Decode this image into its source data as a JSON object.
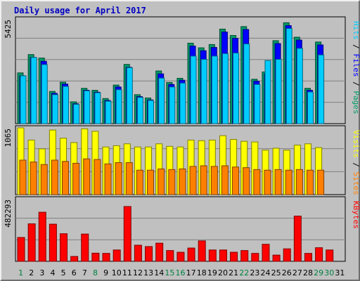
{
  "title": "Daily usage for April 2017",
  "colors": {
    "background": "#c0c0c0",
    "hits": "#00ccff",
    "files": "#0000ff",
    "pages": "#009966",
    "visits": "#ffff00",
    "sites": "#ff8000",
    "kbytes": "#ff0000",
    "title": "#0000c0",
    "weekend_label": "#008040"
  },
  "chart_data": [
    {
      "type": "bar",
      "panel": "top",
      "ymax_label": "5425",
      "ylim": [
        0,
        5425
      ],
      "side_label": [
        {
          "text": "Pages",
          "color_key": "pages"
        },
        {
          "text": "Files",
          "color_key": "files"
        },
        {
          "text": "Hits",
          "color_key": "hits"
        }
      ],
      "separator": " / ",
      "series": [
        {
          "name": "Pages",
          "color_key": "pages",
          "values": [
            2630,
            3580,
            3400,
            1670,
            2150,
            1130,
            1830,
            1730,
            1300,
            2000,
            3070,
            1500,
            1330,
            2730,
            2130,
            2350,
            4170,
            3930,
            4100,
            4900,
            4570,
            5030,
            2300,
            2680,
            4300,
            5230,
            4480,
            1830,
            4230,
            "",
            ""
          ]
        },
        {
          "name": "Files",
          "color_key": "files",
          "values": [
            2480,
            3430,
            3230,
            1570,
            2050,
            1030,
            1730,
            1630,
            1200,
            1900,
            2920,
            1400,
            1230,
            2580,
            2030,
            2250,
            4020,
            3780,
            3950,
            4750,
            4420,
            4880,
            2200,
            2580,
            4150,
            5080,
            4330,
            1730,
            4080,
            "",
            ""
          ]
        },
        {
          "name": "Hits",
          "color_key": "hits",
          "values": [
            2480,
            3430,
            3060,
            1500,
            1930,
            1000,
            1700,
            1600,
            1160,
            1760,
            2900,
            1360,
            1200,
            2360,
            1900,
            2100,
            3500,
            3330,
            3500,
            3630,
            3660,
            4130,
            2030,
            3270,
            3330,
            4930,
            3900,
            1640,
            3560,
            "",
            ""
          ]
        }
      ]
    },
    {
      "type": "bar",
      "panel": "middle",
      "ymax_label": "1065",
      "ylim": [
        0,
        1065
      ],
      "side_label": [
        {
          "text": "Sites",
          "color_key": "sites"
        },
        {
          "text": "Visits",
          "color_key": "visits"
        }
      ],
      "separator": " / ",
      "series": [
        {
          "name": "Visits",
          "color_key": "visits",
          "values": [
            1065,
            870,
            730,
            1030,
            900,
            830,
            1050,
            1010,
            760,
            780,
            810,
            760,
            760,
            810,
            770,
            760,
            870,
            860,
            870,
            940,
            880,
            850,
            840,
            710,
            740,
            710,
            790,
            810,
            750,
            "",
            ""
          ]
        },
        {
          "name": "Sites",
          "color_key": "sites",
          "values": [
            550,
            520,
            480,
            550,
            530,
            500,
            570,
            560,
            490,
            510,
            510,
            390,
            390,
            410,
            400,
            410,
            450,
            460,
            450,
            460,
            440,
            430,
            400,
            390,
            400,
            390,
            400,
            390,
            390,
            "",
            ""
          ]
        }
      ]
    },
    {
      "type": "bar",
      "panel": "bottom",
      "ymax_label": "482293",
      "ylim": [
        0,
        550000
      ],
      "side_label": [
        {
          "text": "KBytes",
          "color_key": "kbytes"
        }
      ],
      "separator": "",
      "series": [
        {
          "name": "KBytes",
          "color_key": "kbytes",
          "values": [
            210000,
            330000,
            432000,
            327000,
            243000,
            43000,
            240000,
            72000,
            70000,
            100000,
            482293,
            142000,
            130000,
            160000,
            95000,
            80000,
            117000,
            180000,
            100000,
            100000,
            80000,
            95000,
            70000,
            150000,
            55000,
            110000,
            398000,
            70000,
            120000,
            100000,
            ""
          ]
        }
      ]
    }
  ],
  "x_axis": {
    "labels": [
      "1",
      "2",
      "3",
      "4",
      "5",
      "6",
      "7",
      "8",
      "9",
      "10",
      "11",
      "12",
      "13",
      "14",
      "15",
      "16",
      "17",
      "18",
      "19",
      "20",
      "21",
      "22",
      "23",
      "24",
      "25",
      "26",
      "27",
      "28",
      "29",
      "30",
      "31"
    ],
    "weekend_days": [
      1,
      8,
      15,
      16,
      22,
      29,
      30
    ]
  }
}
